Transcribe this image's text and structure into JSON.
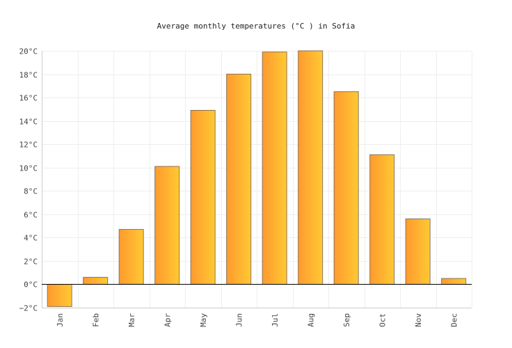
{
  "chart_data": {
    "type": "bar",
    "title": "Average monthly temperatures (°C ) in Sofia",
    "categories": [
      "Jan",
      "Feb",
      "Mar",
      "Apr",
      "May",
      "Jun",
      "Jul",
      "Aug",
      "Sep",
      "Oct",
      "Nov",
      "Dec"
    ],
    "values": [
      -1.9,
      0.6,
      4.7,
      10.1,
      14.9,
      18.0,
      19.9,
      20.0,
      16.5,
      11.1,
      5.6,
      0.5
    ],
    "y_ticks": [
      "−2°C",
      "0°C",
      "2°C",
      "4°C",
      "6°C",
      "8°C",
      "10°C",
      "12°C",
      "14°C",
      "16°C",
      "18°C",
      "20°C"
    ],
    "ylim": [
      -2,
      20
    ],
    "grid": true,
    "colors": {
      "bar_left": "#ff9a2e",
      "bar_right": "#ffc933",
      "bar_stroke": "#8a7355"
    }
  }
}
